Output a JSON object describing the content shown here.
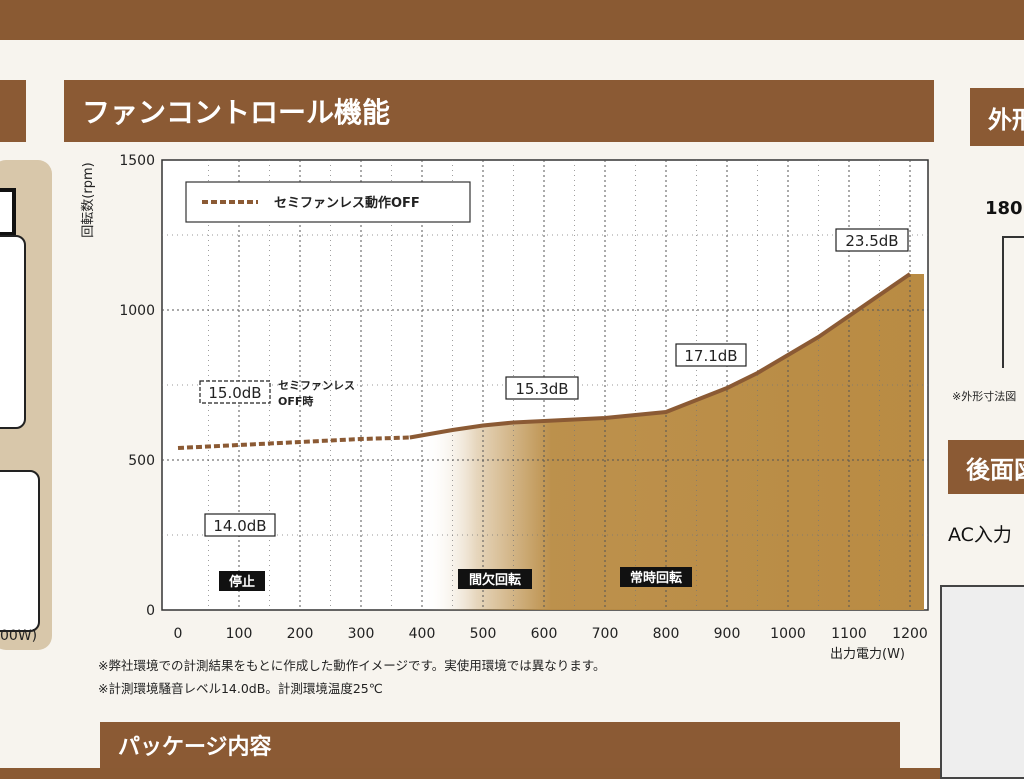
{
  "section": {
    "title": "ファンコントロール機能",
    "right_title": "外形",
    "right_title2": "後面図",
    "bottom_title": "パッケージ内容"
  },
  "left": {
    "text": "00W)"
  },
  "right": {
    "dimension": "180",
    "note": "※外形寸法図",
    "ac_label": "AC入力"
  },
  "colors": {
    "brown": "#8b5a34",
    "fill_gold": "#b98b43",
    "dash_line": "#8b5a34"
  },
  "chart_data": {
    "type": "area",
    "ylabel": "回転数(rpm)",
    "xlabel": "出力電力(W)",
    "xlim": [
      0,
      1200
    ],
    "ylim": [
      0,
      1500
    ],
    "x_ticks": [
      0,
      100,
      200,
      300,
      400,
      500,
      600,
      700,
      800,
      900,
      1000,
      1100,
      1200
    ],
    "y_ticks": [
      0,
      500,
      1000,
      1500
    ],
    "grid": true,
    "legend": {
      "position": "top-left",
      "label": "セミファンレス動作OFF"
    },
    "series": [
      {
        "name": "セミファンレス動作OFF",
        "style": "dashed",
        "x": [
          0,
          100,
          200,
          300,
          380
        ],
        "y": [
          540,
          550,
          560,
          570,
          575
        ]
      },
      {
        "style": "solid",
        "x": [
          380,
          450,
          500,
          550,
          600,
          650,
          700,
          750,
          800,
          850,
          900,
          950,
          1000,
          1050,
          1100,
          1150,
          1200
        ],
        "y": [
          575,
          600,
          615,
          625,
          630,
          635,
          640,
          650,
          660,
          700,
          740,
          790,
          850,
          910,
          980,
          1050,
          1120
        ]
      }
    ],
    "zones": [
      {
        "label": "停止"
      },
      {
        "label": "間欠回転"
      },
      {
        "label": "常時回転"
      }
    ],
    "annotations": [
      {
        "text": "15.0dB",
        "dashed": true
      },
      {
        "text": "セミファンレス"
      },
      {
        "text": "OFF時"
      },
      {
        "text": "14.0dB"
      },
      {
        "text": "15.3dB"
      },
      {
        "text": "17.1dB"
      },
      {
        "text": "23.5dB"
      }
    ],
    "notes": [
      "※弊社環境での計測結果をもとに作成した動作イメージです。実使用環境では異なります。",
      "※計測環境騒音レベル14.0dB。計測環境温度25℃"
    ]
  }
}
